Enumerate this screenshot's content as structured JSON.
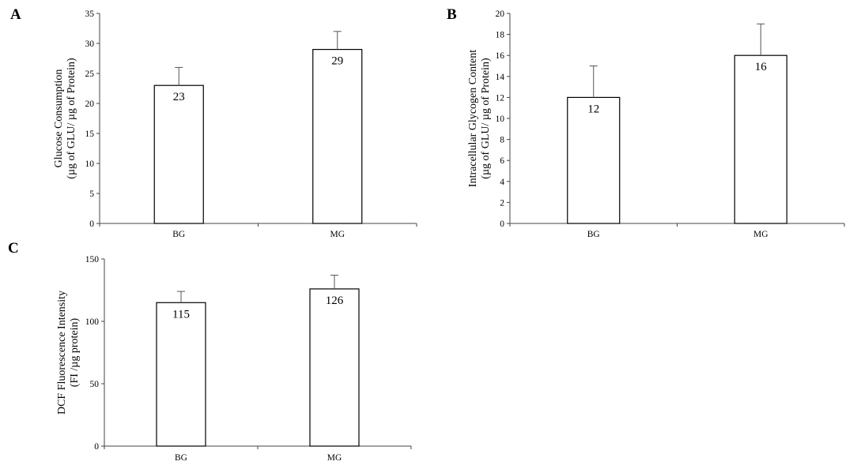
{
  "chart_data": [
    {
      "panel": "A",
      "type": "bar",
      "categories": [
        "BG",
        "MG"
      ],
      "values": [
        23,
        29
      ],
      "error": [
        3,
        3
      ],
      "data_labels": [
        "23",
        "29"
      ],
      "ylabel_lines": [
        "Glucose Consumption",
        "(µg of GLU/ µg of Protein)"
      ],
      "ylim": [
        0,
        35
      ],
      "yticks": [
        0,
        5,
        10,
        15,
        20,
        25,
        30,
        35
      ],
      "ytick_labels": [
        "0",
        "5",
        "10",
        "15",
        "20",
        "25",
        "30",
        "35"
      ],
      "grid": false
    },
    {
      "panel": "B",
      "type": "bar",
      "categories": [
        "BG",
        "MG"
      ],
      "values": [
        12,
        16
      ],
      "error": [
        3,
        3
      ],
      "data_labels": [
        "12",
        "16"
      ],
      "ylabel_lines": [
        "Intracellular Glycogen Content",
        "(µg of GLU/ µg of Protein)"
      ],
      "ylim": [
        0,
        20
      ],
      "yticks": [
        0,
        2,
        4,
        6,
        8,
        10,
        12,
        14,
        16,
        18,
        20
      ],
      "ytick_labels": [
        "0",
        "2",
        "4",
        "6",
        "8",
        "10",
        "12",
        "14",
        "16",
        "18",
        "20"
      ],
      "grid": false
    },
    {
      "panel": "C",
      "type": "bar",
      "categories": [
        "BG",
        "MG"
      ],
      "values": [
        115,
        126
      ],
      "error": [
        9,
        11
      ],
      "data_labels": [
        "115",
        "126"
      ],
      "ylabel_lines": [
        "DCF Fluorescence Intensity",
        "(FI /µg  protein)"
      ],
      "ylim": [
        0,
        150
      ],
      "yticks": [
        0,
        50,
        100,
        150
      ],
      "ytick_labels": [
        "0",
        "50",
        "100",
        "150"
      ],
      "grid": false
    }
  ]
}
